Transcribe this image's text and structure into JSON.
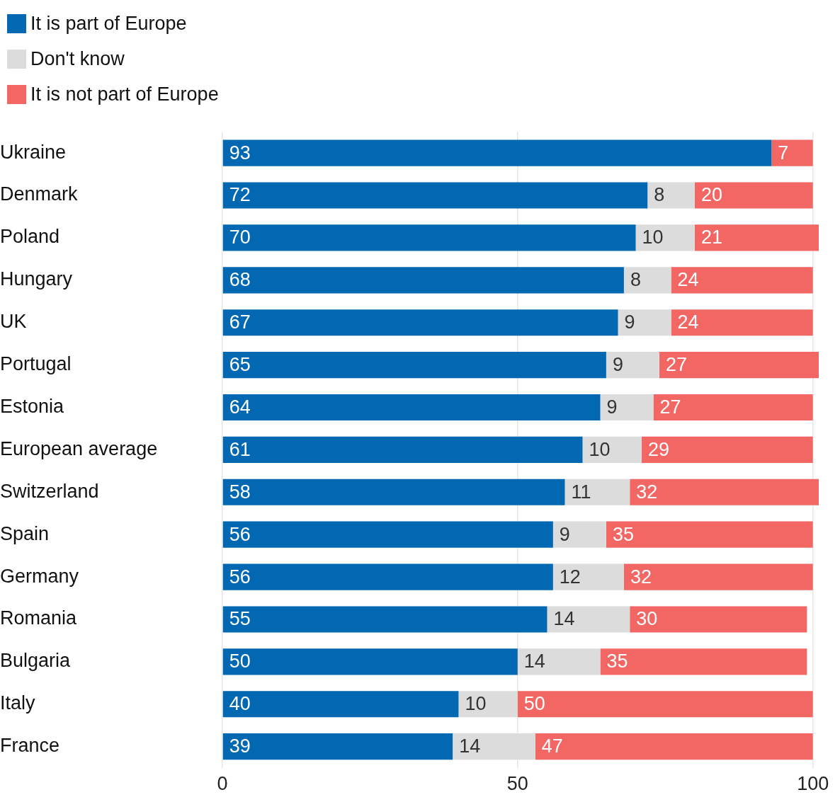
{
  "chart_data": {
    "type": "bar",
    "orientation": "horizontal",
    "stacked": true,
    "legend": "top left",
    "grid": "x",
    "categories": [
      "Ukraine",
      "Denmark",
      "Poland",
      "Hungary",
      "UK",
      "Portugal",
      "Estonia",
      "European average",
      "Switzerland",
      "Spain",
      "Germany",
      "Romania",
      "Bulgaria",
      "Italy",
      "France"
    ],
    "xlim": [
      0,
      101
    ],
    "xticks": [
      0,
      50,
      100
    ],
    "series": [
      {
        "name": "It is part of Europe",
        "color": "#0168b1",
        "values": [
          93,
          72,
          70,
          68,
          67,
          65,
          64,
          61,
          58,
          56,
          56,
          55,
          50,
          40,
          39
        ],
        "value_labels": [
          "93",
          "72",
          "70",
          "68",
          "67",
          "65",
          "64",
          "61",
          "58",
          "56",
          "56",
          "55",
          "50",
          "40",
          "39"
        ]
      },
      {
        "name": "Don't know",
        "color": "#dcdcdc",
        "values": [
          null,
          8,
          10,
          8,
          9,
          9,
          9,
          10,
          11,
          9,
          12,
          14,
          14,
          10,
          14
        ],
        "value_labels": [
          null,
          "8",
          "10",
          "8",
          "9",
          "9",
          "9",
          "10",
          "11",
          "9",
          "12",
          "14",
          "14",
          "10",
          "14"
        ]
      },
      {
        "name": "It is not part of Europe",
        "color": "#f26764",
        "values": [
          7,
          20,
          21,
          24,
          24,
          27,
          27,
          29,
          32,
          35,
          32,
          30,
          35,
          50,
          47
        ],
        "value_labels": [
          "7",
          "20",
          "21",
          "24",
          "24",
          "27",
          "27",
          "29",
          "32",
          "35",
          "32",
          "30",
          "35",
          "50",
          "47"
        ]
      }
    ]
  }
}
